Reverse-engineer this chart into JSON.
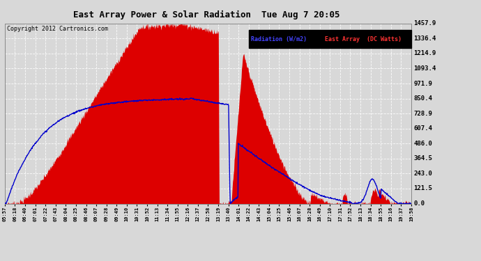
{
  "title": "East Array Power & Solar Radiation  Tue Aug 7 20:05",
  "copyright": "Copyright 2012 Cartronics.com",
  "yticks": [
    0.0,
    121.5,
    243.0,
    364.5,
    486.0,
    607.4,
    728.9,
    850.4,
    971.9,
    1093.4,
    1214.9,
    1336.4,
    1457.9
  ],
  "ymax": 1457.9,
  "ymin": 0.0,
  "bg_color": "#d8d8d8",
  "fill_color": "#dd0000",
  "line_color": "#0000cc",
  "xtick_labels": [
    "05:57",
    "06:18",
    "06:40",
    "07:01",
    "07:22",
    "07:43",
    "08:04",
    "08:25",
    "08:46",
    "09:07",
    "09:28",
    "09:49",
    "10:10",
    "10:31",
    "10:52",
    "11:13",
    "11:34",
    "11:55",
    "12:16",
    "12:37",
    "12:58",
    "13:19",
    "13:40",
    "14:01",
    "14:22",
    "14:43",
    "15:04",
    "15:25",
    "15:46",
    "16:07",
    "16:28",
    "16:49",
    "17:10",
    "17:31",
    "17:52",
    "18:13",
    "18:34",
    "18:55",
    "19:16",
    "19:37",
    "19:58"
  ],
  "n_xticks": 41,
  "n_points": 1000,
  "legend_radiation_text": "Radiation (W/m2)",
  "legend_eastarray_text": "East Array  (DC Watts)"
}
